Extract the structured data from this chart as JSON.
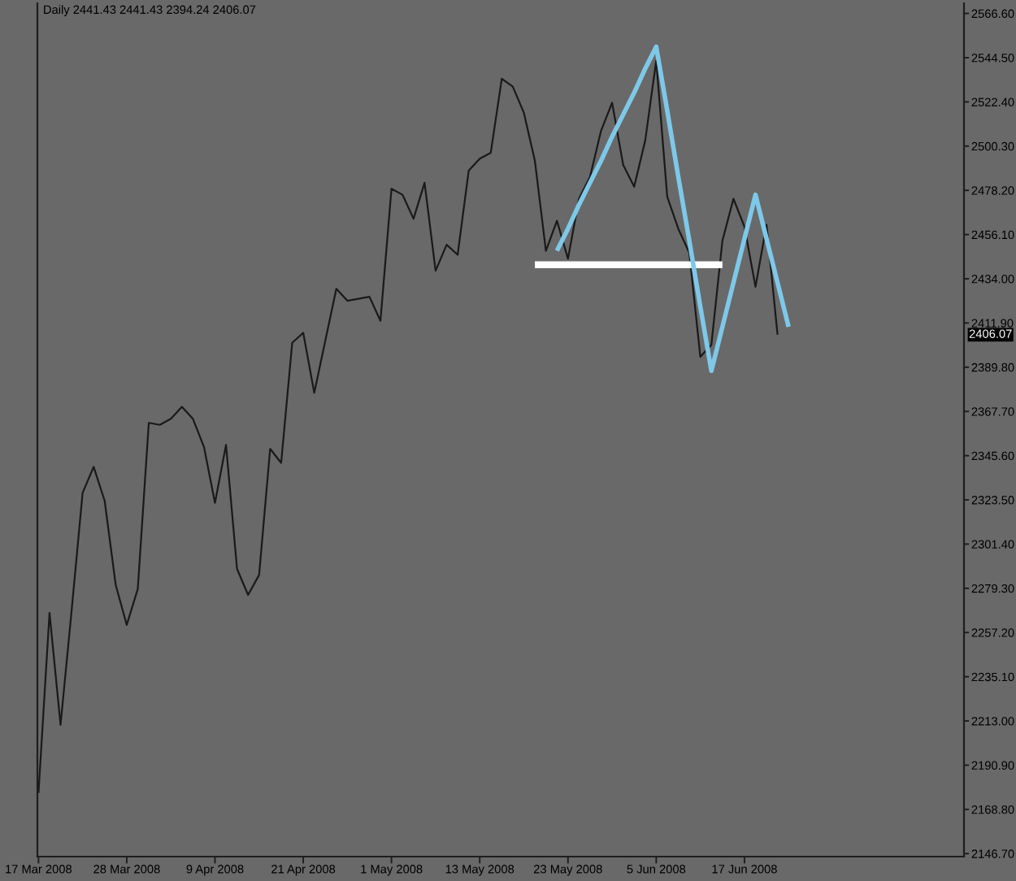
{
  "chart_data": {
    "type": "line",
    "title": "Daily 2441.43 2441.43 2394.24 2406.07",
    "categories": [
      "17 Mar 2008",
      null,
      null,
      null,
      null,
      null,
      null,
      null,
      "28 Mar 2008",
      null,
      null,
      null,
      null,
      null,
      null,
      null,
      "9 Apr 2008",
      null,
      null,
      null,
      null,
      null,
      null,
      null,
      "21 Apr 2008",
      null,
      null,
      null,
      null,
      null,
      null,
      null,
      "1 May 2008",
      null,
      null,
      null,
      null,
      null,
      null,
      null,
      "13 May 2008",
      null,
      null,
      null,
      null,
      null,
      null,
      null,
      "23 May 2008",
      null,
      null,
      null,
      null,
      null,
      null,
      null,
      "5 Jun 2008",
      null,
      null,
      null,
      null,
      null,
      null,
      null,
      "17 Jun 2008",
      null,
      null,
      null,
      null,
      null,
      null,
      null,
      null,
      null,
      null,
      null,
      null,
      null,
      null,
      null,
      null,
      null,
      null,
      null
    ],
    "ylim": [
      2145.2,
      2571.7
    ],
    "yticks": [
      {
        "value": 2566.6,
        "label": "2566.60"
      },
      {
        "value": 2544.5,
        "label": "2544.50"
      },
      {
        "value": 2522.4,
        "label": "2522.40"
      },
      {
        "value": 2500.3,
        "label": "2500.30"
      },
      {
        "value": 2478.2,
        "label": "2478.20"
      },
      {
        "value": 2456.1,
        "label": "2456.10"
      },
      {
        "value": 2434.0,
        "label": "2434.00"
      },
      {
        "value": 2411.9,
        "label": "2411.90"
      },
      {
        "value": 2389.8,
        "label": "2389.80"
      },
      {
        "value": 2367.7,
        "label": "2367.70"
      },
      {
        "value": 2345.6,
        "label": "2345.60"
      },
      {
        "value": 2323.5,
        "label": "2323.50"
      },
      {
        "value": 2301.4,
        "label": "2301.40"
      },
      {
        "value": 2279.3,
        "label": "2279.30"
      },
      {
        "value": 2257.2,
        "label": "2257.20"
      },
      {
        "value": 2235.1,
        "label": "2235.10"
      },
      {
        "value": 2213.0,
        "label": "2213.00"
      },
      {
        "value": 2190.9,
        "label": "2190.90"
      },
      {
        "value": 2168.8,
        "label": "2168.80"
      },
      {
        "value": 2146.7,
        "label": "2146.70"
      }
    ],
    "marker": "none",
    "line_style": "solid",
    "series": [
      {
        "color": "#1a1a1a",
        "values": [
          2177,
          2267,
          2211,
          2268,
          2327,
          2340,
          2323,
          2281,
          2261,
          2279,
          2362,
          2361,
          2364,
          2370,
          2364,
          2350,
          2322,
          2351,
          2289,
          2276,
          2286,
          2349,
          2342,
          2402,
          2407,
          2377,
          2403,
          2429,
          2423,
          2424,
          2425,
          2413,
          2479,
          2476,
          2464,
          2482,
          2438,
          2451,
          2446,
          2488,
          2494,
          2497,
          2534,
          2530,
          2517,
          2493,
          2448,
          2463,
          2444,
          2474,
          2485,
          2508,
          2522,
          2491,
          2480,
          2503,
          2543,
          2475,
          2459,
          2447,
          2395,
          2401,
          2453,
          2474,
          2460,
          2430,
          2461,
          2406,
          null,
          null,
          null,
          null,
          null,
          null,
          null,
          null,
          null,
          null,
          null,
          null,
          null,
          null,
          null,
          null
        ]
      },
      {
        "color": "#ffffff",
        "values": [
          null,
          null,
          null,
          null,
          null,
          null,
          null,
          null,
          null,
          null,
          null,
          null,
          null,
          null,
          null,
          null,
          null,
          null,
          null,
          null,
          null,
          null,
          null,
          null,
          null,
          null,
          null,
          null,
          null,
          null,
          null,
          null,
          null,
          null,
          null,
          null,
          null,
          null,
          null,
          null,
          null,
          null,
          null,
          null,
          null,
          2441,
          2441,
          2441,
          2441,
          2441,
          2441,
          2441,
          2441,
          2441,
          2441,
          2441,
          2441,
          2441,
          2441,
          2441,
          2441,
          2441,
          2441,
          null,
          null,
          null,
          null,
          null,
          null,
          null,
          null,
          null,
          null,
          null,
          null,
          null,
          null,
          null,
          null,
          null,
          null,
          null,
          null,
          null
        ]
      },
      {
        "color": "#7ec8e8",
        "values": [
          null,
          null,
          null,
          null,
          null,
          null,
          null,
          null,
          null,
          null,
          null,
          null,
          null,
          null,
          null,
          null,
          null,
          null,
          null,
          null,
          null,
          null,
          null,
          null,
          null,
          null,
          null,
          null,
          null,
          null,
          null,
          null,
          null,
          null,
          null,
          null,
          null,
          null,
          null,
          null,
          null,
          null,
          null,
          null,
          null,
          null,
          null,
          2448,
          2459,
          2471,
          2482,
          2493,
          2505,
          2516,
          2527,
          2539,
          2550,
          2518,
          2485,
          2453,
          2420,
          2388,
          2410,
          2432,
          2454,
          2476,
          2454,
          2432,
          2410,
          null,
          null,
          null,
          null,
          null,
          null,
          null,
          null,
          null,
          null,
          null,
          null,
          null,
          null,
          null
        ]
      }
    ],
    "annotations": [
      "2406.07"
    ]
  }
}
